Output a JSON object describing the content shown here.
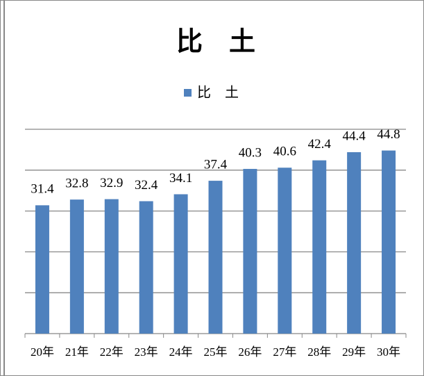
{
  "chart_data": {
    "type": "bar",
    "title": "比　土",
    "categories": [
      "20年",
      "21年",
      "22年",
      "23年",
      "24年",
      "25年",
      "26年",
      "27年",
      "28年",
      "29年",
      "30年"
    ],
    "series": [
      {
        "name": "比　土",
        "color": "#4f81bd",
        "values": [
          31.4,
          32.8,
          32.9,
          32.4,
          34.1,
          37.4,
          40.3,
          40.6,
          42.4,
          44.4,
          44.8
        ]
      }
    ],
    "ylim": [
      0,
      50
    ],
    "yticks": [
      0,
      10,
      20,
      30,
      40,
      50
    ],
    "grid": true,
    "legend": "top"
  }
}
